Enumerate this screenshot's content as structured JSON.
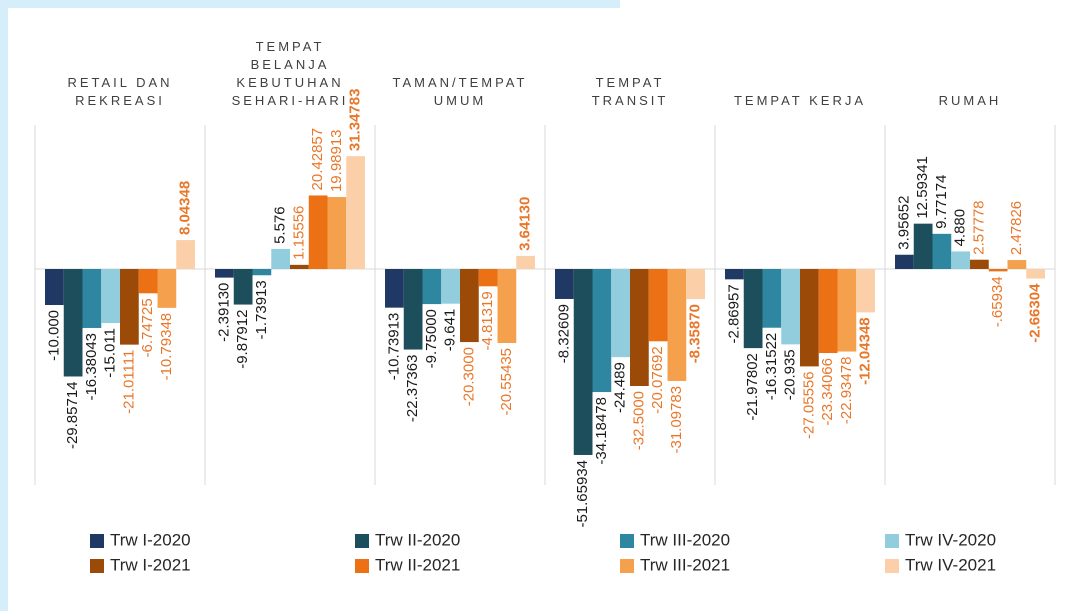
{
  "chart_data": {
    "type": "bar",
    "categories": [
      "RETAIL DAN REKREASI",
      "TEMPAT BELANJA KEBUTUHAN SEHARI-HARI",
      "TAMAN/TEMPAT UMUM",
      "TEMPAT TRANSIT",
      "TEMPAT KERJA",
      "RUMAH"
    ],
    "ylim": [
      -60,
      40
    ],
    "legend": "bottom",
    "series": [
      {
        "name": "Trw I-2020",
        "color": "#203864",
        "values": [
          -10.0,
          -2.3913,
          -10.73913,
          -8.32609,
          -2.86957,
          3.95652
        ],
        "value_labels": [
          "-10.000",
          "-2.39130",
          "-10.73913",
          "-8.32609",
          "-2.86957",
          "3.95652"
        ]
      },
      {
        "name": "Trw II-2020",
        "color": "#1d4e5c",
        "values": [
          -29.85714,
          -9.87912,
          -22.37363,
          -51.65934,
          -21.97802,
          12.59341
        ],
        "value_labels": [
          "-29.85714",
          "-9.87912",
          "-22.37363",
          "-51.65934",
          "-21.97802",
          "12.59341"
        ]
      },
      {
        "name": "Trw III-2020",
        "color": "#2e86a0",
        "values": [
          -16.38043,
          -1.73913,
          -9.75,
          -34.18478,
          -16.31522,
          9.77174
        ],
        "value_labels": [
          "-16.38043",
          "-1.73913",
          "-9.75000",
          "-34.18478",
          "-16.31522",
          "9.77174"
        ]
      },
      {
        "name": "Trw IV-2020",
        "color": "#92cddd",
        "values": [
          -15.011,
          5.576,
          -9.641,
          -24.489,
          -20.935,
          4.88
        ],
        "value_labels": [
          "-15.011",
          "5.576",
          "-9.641",
          "-24.489",
          "-20.935",
          "4.880"
        ]
      },
      {
        "name": "Trw I-2021",
        "color": "#9c4a08",
        "values": [
          -21.01111,
          1.15556,
          -20.3,
          -32.5,
          -27.05556,
          2.57778
        ],
        "value_labels": [
          "-21.01111",
          "1.15556",
          "-20.3000",
          "-32.5000",
          "-27.05556",
          "2.57778"
        ]
      },
      {
        "name": "Trw II-2021",
        "color": "#ec7014",
        "values": [
          -6.74725,
          20.42857,
          -4.81319,
          -20.07692,
          -23.34066,
          -0.65934
        ],
        "value_labels": [
          "-6.74725",
          "20.42857",
          "-4.81319",
          "-20.07692",
          "-23.34066",
          "-.65934"
        ]
      },
      {
        "name": "Trw III-2021",
        "color": "#f4a04c",
        "values": [
          -10.79348,
          19.98913,
          -20.55435,
          -31.09783,
          -22.93478,
          2.47826
        ],
        "value_labels": [
          "-10.79348",
          "19.98913",
          "-20.55435",
          "-31.09783",
          "-22.93478",
          "2.47826"
        ]
      },
      {
        "name": "Trw IV-2021",
        "color": "#fbd0a8",
        "values": [
          8.04348,
          31.34783,
          3.6413,
          -8.3587,
          -12.04348,
          -2.66304
        ],
        "value_labels": [
          "8.04348",
          "31.34783",
          "3.64130",
          "-8.35870",
          "-12.04348",
          "-2.66304"
        ]
      }
    ]
  }
}
